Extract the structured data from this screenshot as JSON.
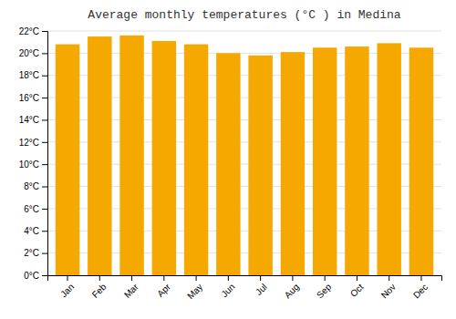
{
  "chart_data": {
    "type": "bar",
    "title": "Average monthly temperatures (°C ) in Medina",
    "categories": [
      "Jan",
      "Feb",
      "Mar",
      "Apr",
      "May",
      "Jun",
      "Jul",
      "Aug",
      "Sep",
      "Oct",
      "Nov",
      "Dec"
    ],
    "values": [
      20.8,
      21.5,
      21.6,
      21.1,
      20.8,
      20.0,
      19.8,
      20.1,
      20.5,
      20.6,
      20.9,
      20.5
    ],
    "color": "#F5A800",
    "ylim": [
      0,
      22
    ],
    "yticks": [
      {
        "value": 0,
        "label": "0°C"
      },
      {
        "value": 2,
        "label": "2°C"
      },
      {
        "value": 4,
        "label": "4°C"
      },
      {
        "value": 6,
        "label": "6°C"
      },
      {
        "value": 8,
        "label": "8°C"
      },
      {
        "value": 10,
        "label": "10°C"
      },
      {
        "value": 12,
        "label": "12°C"
      },
      {
        "value": 14,
        "label": "14°C"
      },
      {
        "value": 16,
        "label": "16°C"
      },
      {
        "value": 18,
        "label": "18°C"
      },
      {
        "value": 20,
        "label": "20°C"
      },
      {
        "value": 22,
        "label": "22°C"
      }
    ],
    "grid": true
  }
}
